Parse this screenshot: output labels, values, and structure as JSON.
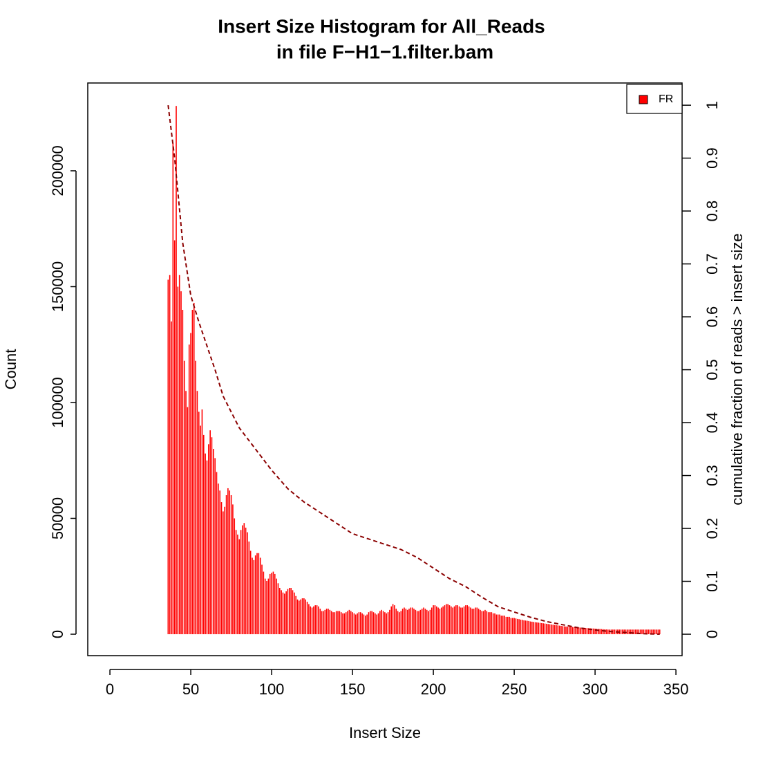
{
  "chart_data": {
    "type": "bar",
    "title": "Insert Size Histogram for All_Reads",
    "subtitle": "in file F−H1−1.filter.bam",
    "x_label": "Insert Size",
    "y_label": "Count",
    "y2_label": "cumulative fraction of reads > insert size",
    "xlim": [
      -13.7,
      353.8
    ],
    "xticks": [
      0,
      50,
      100,
      150,
      200,
      250,
      300,
      350
    ],
    "ylim": [
      -9250,
      237900
    ],
    "yticks": [
      0,
      50000,
      100000,
      150000,
      200000
    ],
    "y2lim": [
      -0.0405,
      1.042
    ],
    "y2ticks": [
      0,
      0.1,
      0.2,
      0.3,
      0.4,
      0.5,
      0.6,
      0.7,
      0.8,
      0.9,
      1
    ],
    "legend": "top-right",
    "x": [
      36,
      37,
      38,
      39,
      40,
      41,
      42,
      43,
      44,
      45,
      46,
      47,
      48,
      49,
      50,
      51,
      52,
      53,
      54,
      55,
      56,
      57,
      58,
      59,
      60,
      61,
      62,
      63,
      64,
      65,
      66,
      67,
      68,
      69,
      70,
      71,
      72,
      73,
      74,
      75,
      76,
      77,
      78,
      79,
      80,
      81,
      82,
      83,
      84,
      85,
      86,
      87,
      88,
      89,
      90,
      91,
      92,
      93,
      94,
      95,
      96,
      97,
      98,
      99,
      100,
      101,
      102,
      103,
      104,
      105,
      106,
      107,
      108,
      109,
      110,
      111,
      112,
      113,
      114,
      115,
      116,
      117,
      118,
      119,
      120,
      121,
      122,
      123,
      124,
      125,
      126,
      127,
      128,
      129,
      130,
      131,
      132,
      133,
      134,
      135,
      136,
      137,
      138,
      139,
      140,
      141,
      142,
      143,
      144,
      145,
      146,
      147,
      148,
      149,
      150,
      151,
      152,
      153,
      154,
      155,
      156,
      157,
      158,
      159,
      160,
      161,
      162,
      163,
      164,
      165,
      166,
      167,
      168,
      169,
      170,
      171,
      172,
      173,
      174,
      175,
      176,
      177,
      178,
      179,
      180,
      181,
      182,
      183,
      184,
      185,
      186,
      187,
      188,
      189,
      190,
      191,
      192,
      193,
      194,
      195,
      196,
      197,
      198,
      199,
      200,
      201,
      202,
      203,
      204,
      205,
      206,
      207,
      208,
      209,
      210,
      211,
      212,
      213,
      214,
      215,
      216,
      217,
      218,
      219,
      220,
      221,
      222,
      223,
      224,
      225,
      226,
      227,
      228,
      229,
      230,
      231,
      232,
      233,
      234,
      235,
      236,
      237,
      238,
      239,
      240,
      241,
      242,
      243,
      244,
      245,
      246,
      247,
      248,
      249,
      250,
      251,
      252,
      253,
      254,
      255,
      256,
      257,
      258,
      259,
      260,
      261,
      262,
      263,
      264,
      265,
      266,
      267,
      268,
      269,
      270,
      271,
      272,
      273,
      274,
      275,
      276,
      277,
      278,
      279,
      280,
      281,
      282,
      283,
      284,
      285,
      286,
      287,
      288,
      289,
      290,
      291,
      292,
      293,
      294,
      295,
      296,
      297,
      298,
      299,
      300,
      301,
      302,
      303,
      304,
      305,
      306,
      307,
      308,
      309,
      310,
      311,
      312,
      313,
      314,
      315,
      316,
      317,
      318,
      319,
      320,
      321,
      322,
      323,
      324,
      325,
      326,
      327,
      328,
      329,
      330,
      331,
      332,
      333,
      334,
      335,
      336,
      337,
      338,
      339,
      340
    ],
    "series": [
      {
        "name": "FR",
        "color": "#ff0000",
        "values": [
          153000,
          155000,
          135000,
          212000,
          170000,
          228000,
          150000,
          155000,
          148000,
          140000,
          118000,
          105000,
          98000,
          125000,
          130000,
          140000,
          143000,
          118000,
          105000,
          96000,
          90000,
          97000,
          86000,
          78000,
          75000,
          82000,
          88000,
          85000,
          80000,
          76000,
          70000,
          65000,
          62000,
          57000,
          53000,
          55000,
          60000,
          63000,
          62000,
          60000,
          56000,
          50000,
          45000,
          43000,
          41000,
          45000,
          47000,
          48000,
          46000,
          44000,
          40000,
          36000,
          33000,
          32000,
          34000,
          35000,
          35000,
          33000,
          30000,
          27000,
          24000,
          23000,
          24000,
          26000,
          26500,
          27000,
          26000,
          24000,
          22000,
          20000,
          19000,
          18000,
          17500,
          18500,
          19500,
          20000,
          20000,
          19000,
          18000,
          16500,
          15000,
          14500,
          15000,
          15500,
          15500,
          15000,
          14000,
          13000,
          12000,
          11500,
          12000,
          12500,
          12500,
          12000,
          11000,
          10000,
          10000,
          10500,
          11000,
          11000,
          10500,
          10000,
          9500,
          9500,
          10000,
          10000,
          10000,
          9500,
          9000,
          9000,
          9500,
          10000,
          10500,
          10000,
          9500,
          9000,
          8500,
          9000,
          9500,
          9500,
          9000,
          8500,
          8000,
          8500,
          9500,
          10000,
          10000,
          9500,
          9000,
          8500,
          9000,
          10000,
          10500,
          10000,
          9500,
          9000,
          9500,
          10500,
          12000,
          13000,
          12500,
          11000,
          10000,
          9500,
          10000,
          11000,
          11500,
          11000,
          10500,
          11000,
          11500,
          11500,
          11000,
          10500,
          10000,
          10000,
          10500,
          11000,
          11500,
          11000,
          10500,
          10000,
          10500,
          11500,
          12500,
          12500,
          12000,
          11500,
          11000,
          11500,
          12000,
          12500,
          13000,
          13000,
          12500,
          12000,
          11500,
          12000,
          12500,
          12500,
          12000,
          11500,
          11500,
          12000,
          12500,
          12500,
          12000,
          11500,
          11000,
          11000,
          11500,
          11500,
          11000,
          10500,
          10000,
          10000,
          10500,
          10000,
          9500,
          9500,
          9500,
          9000,
          9000,
          8500,
          8500,
          8500,
          8000,
          8000,
          8000,
          7500,
          7500,
          7500,
          7000,
          7000,
          7000,
          6800,
          6600,
          6500,
          6300,
          6200,
          6000,
          5900,
          5800,
          5700,
          5500,
          5400,
          5300,
          5200,
          5100,
          5000,
          4900,
          4800,
          4700,
          4600,
          4500,
          4400,
          4300,
          4200,
          4100,
          4000,
          3900,
          3800,
          3700,
          3600,
          3500,
          3400,
          3300,
          3250,
          3200,
          3150,
          3100,
          3050,
          3000,
          2950,
          2900,
          2850,
          2800,
          2750,
          2700,
          2650,
          2600,
          2550,
          2500,
          2450,
          2400,
          2350,
          2300,
          2250,
          2200,
          2150,
          2100,
          2050,
          2000,
          2000,
          2000,
          2000,
          2000,
          2000,
          2000,
          2000,
          2000,
          2000,
          2000,
          2000,
          2000,
          2000,
          2000,
          2000,
          2000,
          2000,
          2000,
          2000,
          2000,
          2000,
          2000,
          2000,
          2000,
          2000,
          2000,
          2000,
          2000,
          2000,
          2000,
          2000,
          2000
        ]
      },
      {
        "axis": "y2",
        "color": "#8b0000",
        "dashed": true,
        "x": [
          36,
          40,
          45,
          50,
          55,
          60,
          65,
          70,
          75,
          80,
          90,
          100,
          110,
          120,
          130,
          140,
          150,
          160,
          170,
          180,
          190,
          200,
          210,
          220,
          230,
          240,
          250,
          260,
          270,
          280,
          290,
          300,
          310,
          320,
          330,
          340
        ],
        "values": [
          1,
          0.9,
          0.74,
          0.64,
          0.59,
          0.545,
          0.5,
          0.45,
          0.42,
          0.39,
          0.35,
          0.31,
          0.275,
          0.25,
          0.23,
          0.21,
          0.19,
          0.18,
          0.17,
          0.16,
          0.145,
          0.125,
          0.105,
          0.09,
          0.07,
          0.052,
          0.042,
          0.032,
          0.024,
          0.018,
          0.012,
          0.008,
          0.005,
          0.003,
          0.001,
          0
        ]
      }
    ]
  }
}
